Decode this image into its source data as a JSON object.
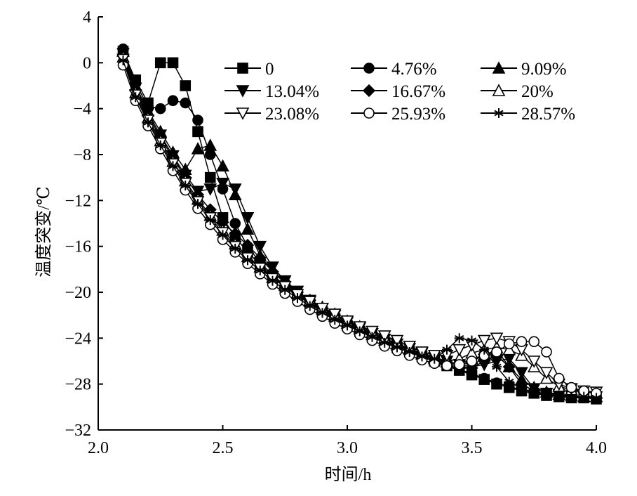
{
  "chart_data": {
    "type": "line",
    "title": "",
    "xlabel": "时间/h",
    "ylabel": "温度突变/℃",
    "xlim": [
      2.0,
      4.0
    ],
    "ylim": [
      -32,
      4
    ],
    "xticks": [
      2.0,
      2.5,
      3.0,
      3.5,
      4.0
    ],
    "xtick_labels": [
      "2.0",
      "2.5",
      "3.0",
      "3.5",
      "4.0"
    ],
    "yticks": [
      4,
      0,
      -4,
      -8,
      -12,
      -16,
      -20,
      -24,
      -28,
      -32
    ],
    "ytick_labels": [
      "4",
      "0",
      "−4",
      "−8",
      "−12",
      "−16",
      "−20",
      "−24",
      "−28",
      "−32"
    ],
    "grid": false,
    "legend_position": "top-right",
    "x": [
      2.1,
      2.15,
      2.2,
      2.25,
      2.3,
      2.35,
      2.4,
      2.45,
      2.5,
      2.55,
      2.6,
      2.65,
      2.7,
      2.75,
      2.8,
      2.85,
      2.9,
      2.95,
      3.0,
      3.05,
      3.1,
      3.15,
      3.2,
      3.25,
      3.3,
      3.35,
      3.4,
      3.45,
      3.5,
      3.55,
      3.6,
      3.65,
      3.7,
      3.75,
      3.8,
      3.85,
      3.9,
      3.95,
      4.0
    ],
    "series": [
      {
        "name": "0",
        "marker": "square-filled",
        "values": [
          1.0,
          -1.5,
          -3.5,
          0,
          0,
          -2,
          -6,
          -10,
          -13.5,
          -15.2,
          -16.5,
          -17.6,
          -18.6,
          -19.5,
          -20.3,
          -21.0,
          -21.7,
          -22.3,
          -22.9,
          -23.4,
          -23.9,
          -24.4,
          -24.8,
          -25.2,
          -25.6,
          -26.0,
          -26.4,
          -26.8,
          -27.2,
          -27.6,
          -28.0,
          -28.3,
          -28.6,
          -28.8,
          -29.0,
          -29.1,
          -29.2,
          -29.2,
          -29.3
        ]
      },
      {
        "name": "4.76%",
        "marker": "circle-filled",
        "values": [
          1.2,
          -1.8,
          -3.8,
          -4.0,
          -3.3,
          -3.5,
          -5,
          -8,
          -11,
          -14,
          -16.0,
          -17.4,
          -18.5,
          -19.4,
          -20.2,
          -20.9,
          -21.6,
          -22.2,
          -22.8,
          -23.3,
          -23.8,
          -24.3,
          -24.7,
          -25.1,
          -25.5,
          -25.9,
          -26.3,
          -26.7,
          -27.1,
          -27.5,
          -27.9,
          -28.2,
          -28.5,
          -28.7,
          -28.9,
          -29.0,
          -29.1,
          -29.2,
          -29.2
        ]
      },
      {
        "name": "9.09%",
        "marker": "triangle-up-filled",
        "values": [
          1.0,
          -2.0,
          -4.2,
          -6.0,
          -7.8,
          -9.3,
          -7.5,
          -7.2,
          -9.0,
          -11.5,
          -14.5,
          -16.8,
          -18.2,
          -19.2,
          -20.1,
          -20.8,
          -21.5,
          -22.1,
          -22.7,
          -23.2,
          -23.7,
          -24.2,
          -24.6,
          -25.0,
          -25.4,
          -25.8,
          -26.1,
          -26.2,
          -25.8,
          -25.5,
          -25.0,
          -26.5,
          -27.6,
          -28.3,
          -28.7,
          -28.9,
          -29.0,
          -29.1,
          -29.1
        ]
      },
      {
        "name": "13.04%",
        "marker": "triangle-down-filled",
        "values": [
          0.8,
          -2.2,
          -4.4,
          -6.3,
          -8.1,
          -9.8,
          -11.2,
          -11.0,
          -10.5,
          -11.0,
          -13.5,
          -16.0,
          -17.8,
          -19.0,
          -19.9,
          -20.7,
          -21.4,
          -22.0,
          -22.6,
          -23.1,
          -23.6,
          -24.1,
          -24.5,
          -24.9,
          -25.3,
          -25.7,
          -26.0,
          -26.3,
          -26.5,
          -26.3,
          -26.0,
          -25.8,
          -27.0,
          -28.4,
          -28.8,
          -28.9,
          -29.0,
          -29.1,
          -29.1
        ]
      },
      {
        "name": "16.67%",
        "marker": "diamond-filled",
        "values": [
          0.6,
          -2.4,
          -4.6,
          -6.5,
          -8.3,
          -10.0,
          -11.5,
          -12.8,
          -13.9,
          -14.9,
          -15.9,
          -17.0,
          -18.2,
          -19.1,
          -20.0,
          -20.7,
          -21.4,
          -22.0,
          -22.6,
          -23.1,
          -23.6,
          -24.1,
          -24.6,
          -25.0,
          -25.4,
          -25.8,
          -26.2,
          -26.5,
          -26.6,
          -26.0,
          -25.5,
          -26.5,
          -28.0,
          -28.6,
          -28.9,
          -29.0,
          -29.1,
          -29.1,
          -29.2
        ]
      },
      {
        "name": "20%",
        "marker": "triangle-up-open",
        "values": [
          0.5,
          -2.6,
          -4.8,
          -6.8,
          -8.6,
          -10.3,
          -11.9,
          -13.3,
          -14.6,
          -15.8,
          -16.9,
          -17.8,
          -18.7,
          -19.4,
          -20.1,
          -20.7,
          -21.3,
          -21.9,
          -22.5,
          -23.0,
          -23.5,
          -24.0,
          -24.5,
          -24.9,
          -25.3,
          -25.7,
          -26.0,
          -25.8,
          -25.3,
          -25.0,
          -24.8,
          -25.0,
          -25.5,
          -26.5,
          -27.5,
          -28.2,
          -28.5,
          -28.7,
          -28.8
        ]
      },
      {
        "name": "23.08%",
        "marker": "triangle-down-open",
        "values": [
          0.3,
          -2.8,
          -5.0,
          -7.0,
          -8.8,
          -10.5,
          -12.1,
          -13.5,
          -14.8,
          -16.0,
          -17.0,
          -17.9,
          -18.8,
          -19.5,
          -20.2,
          -20.8,
          -21.4,
          -21.9,
          -22.5,
          -23.0,
          -23.4,
          -23.8,
          -24.2,
          -24.7,
          -25.2,
          -25.5,
          -25.5,
          -25.0,
          -24.6,
          -24.2,
          -24.0,
          -24.3,
          -25.0,
          -26.0,
          -27.0,
          -28.0,
          -28.4,
          -28.6,
          -28.7
        ]
      },
      {
        "name": "25.93%",
        "marker": "circle-open",
        "values": [
          -0.2,
          -3.3,
          -5.5,
          -7.5,
          -9.4,
          -11.1,
          -12.7,
          -14.1,
          -15.4,
          -16.5,
          -17.5,
          -18.4,
          -19.3,
          -20.1,
          -20.8,
          -21.5,
          -22.1,
          -22.7,
          -23.2,
          -23.7,
          -24.2,
          -24.7,
          -25.1,
          -25.5,
          -25.9,
          -26.2,
          -26.4,
          -26.3,
          -26.0,
          -25.5,
          -25.2,
          -24.5,
          -24.3,
          -24.3,
          -25.2,
          -27.5,
          -28.3,
          -28.6,
          -28.8
        ]
      },
      {
        "name": "28.57%",
        "marker": "asterisk",
        "values": [
          0.2,
          -3.0,
          -5.2,
          -7.2,
          -9.0,
          -10.7,
          -12.3,
          -13.7,
          -15.0,
          -16.2,
          -17.2,
          -18.1,
          -19.0,
          -19.8,
          -20.5,
          -21.2,
          -21.8,
          -22.4,
          -22.9,
          -23.4,
          -23.9,
          -24.4,
          -24.8,
          -25.2,
          -25.6,
          -25.8,
          -25.0,
          -24.0,
          -24.2,
          -25.0,
          -26.5,
          -27.8,
          -28.4,
          -28.7,
          -28.9,
          -29.0,
          -29.1,
          -29.1,
          -29.2
        ]
      }
    ]
  }
}
